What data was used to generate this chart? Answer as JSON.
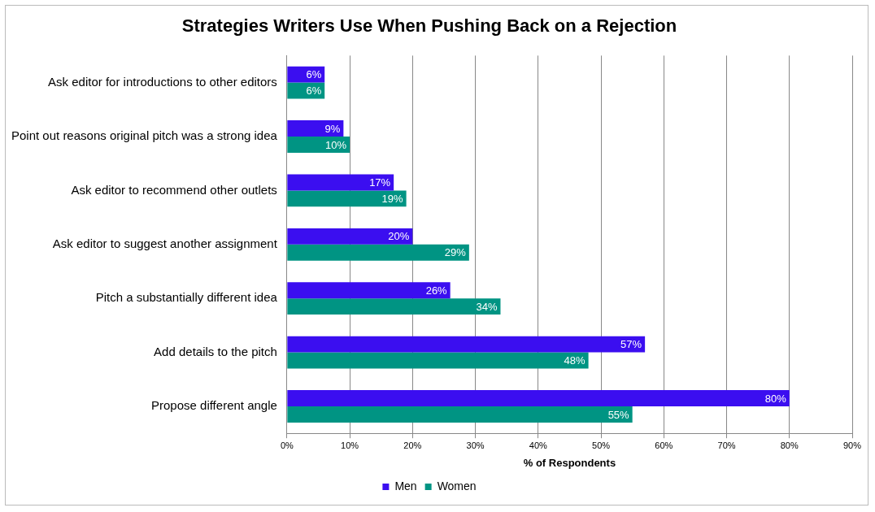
{
  "chart_data": {
    "type": "bar",
    "orientation": "horizontal",
    "title": "Strategies Writers Use When Pushing Back on a Rejection",
    "xlabel": "% of Respondents",
    "categories": [
      "Ask editor for introductions to other editors",
      "Point out reasons original pitch was a strong idea",
      "Ask editor to recommend other outlets",
      "Ask editor to suggest another assignment",
      "Pitch a substantially different idea",
      "Add details to the pitch",
      "Propose different angle"
    ],
    "series": [
      {
        "name": "Men",
        "color": "#3b0ef0",
        "values": [
          6,
          9,
          17,
          20,
          26,
          57,
          80
        ],
        "value_labels": [
          "6%",
          "9%",
          "17%",
          "20%",
          "26%",
          "57%",
          "80%"
        ]
      },
      {
        "name": "Women",
        "color": "#009483",
        "values": [
          6,
          10,
          19,
          29,
          34,
          48,
          55
        ],
        "value_labels": [
          "6%",
          "10%",
          "19%",
          "29%",
          "34%",
          "48%",
          "55%"
        ]
      }
    ],
    "xlim": [
      0,
      90
    ],
    "xticks": [
      {
        "value": 0,
        "label": "0%"
      },
      {
        "value": 10,
        "label": "10%"
      },
      {
        "value": 20,
        "label": "20%"
      },
      {
        "value": 30,
        "label": "30%"
      },
      {
        "value": 40,
        "label": "40%"
      },
      {
        "value": 50,
        "label": "50%"
      },
      {
        "value": 60,
        "label": "60%"
      },
      {
        "value": 70,
        "label": "70%"
      },
      {
        "value": 80,
        "label": "80%"
      },
      {
        "value": 90,
        "label": "90%"
      }
    ],
    "grid": "x",
    "legend": "bottom"
  }
}
